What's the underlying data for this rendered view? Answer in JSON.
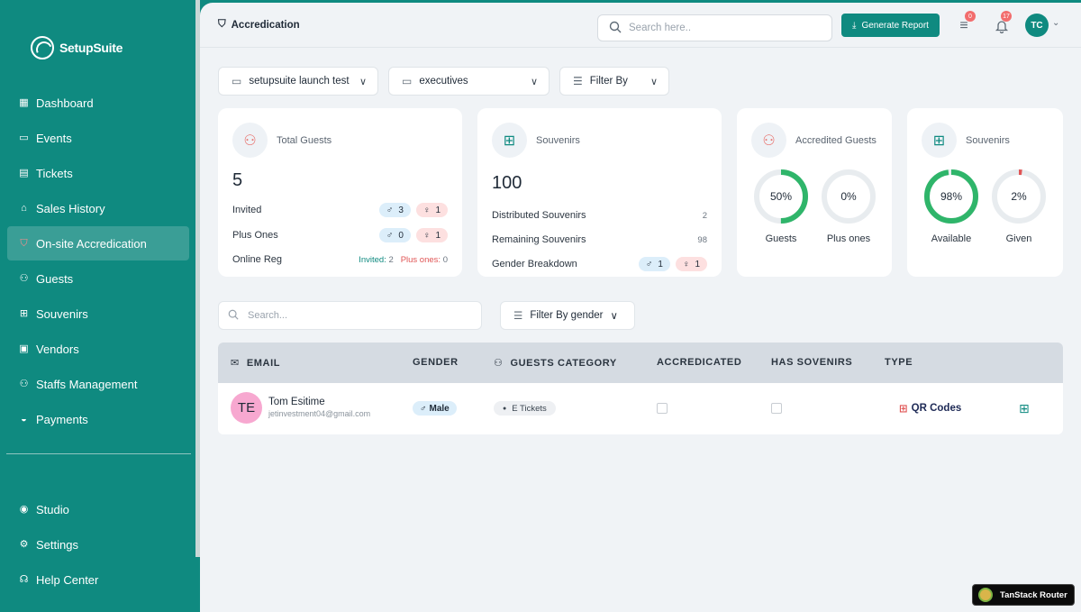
{
  "app": {
    "name": "SetupSuite"
  },
  "sidebar": {
    "items": [
      {
        "label": "Dashboard",
        "icon": "grid-icon"
      },
      {
        "label": "Events",
        "icon": "calendar-icon"
      },
      {
        "label": "Tickets",
        "icon": "ticket-icon"
      },
      {
        "label": "Sales History",
        "icon": "sales-icon"
      },
      {
        "label": "On-site Accredication",
        "icon": "shield-check-icon",
        "active": true
      },
      {
        "label": "Guests",
        "icon": "users-icon"
      },
      {
        "label": "Souvenirs",
        "icon": "gift-icon"
      },
      {
        "label": "Vendors",
        "icon": "store-icon"
      },
      {
        "label": "Staffs Management",
        "icon": "staff-icon"
      },
      {
        "label": "Payments",
        "icon": "payment-icon"
      }
    ],
    "bottom_items": [
      {
        "label": "Studio",
        "icon": "studio-icon"
      },
      {
        "label": "Settings",
        "icon": "gear-icon"
      },
      {
        "label": "Help Center",
        "icon": "headset-icon"
      }
    ]
  },
  "topbar": {
    "title": "Accredication",
    "search_placeholder": "Search here..",
    "generate_label": "Generate Report",
    "cart_badge": "0",
    "notif_badge": "17",
    "avatar_initials": "TC"
  },
  "filters": {
    "event": "setupsuite launch test",
    "category": "executives",
    "filter_by": "Filter By"
  },
  "cards": {
    "total_guests": {
      "title": "Total Guests",
      "value": "5",
      "invited_label": "Invited",
      "invited_male": "3",
      "invited_female": "1",
      "plus_label": "Plus Ones",
      "plus_male": "0",
      "plus_female": "1",
      "online_label": "Online Reg",
      "online_invited_label": "Invited:",
      "online_invited_value": "2",
      "online_plus_label": "Plus ones:",
      "online_plus_value": "0"
    },
    "souvenirs": {
      "title": "Souvenirs",
      "value": "100",
      "distributed_label": "Distributed Souvenirs",
      "distributed_value": "2",
      "remaining_label": "Remaining Souvenirs",
      "remaining_value": "98",
      "gender_label": "Gender Breakdown",
      "gender_male": "1",
      "gender_female": "1"
    },
    "accredited": {
      "title": "Accredited Guests",
      "ring1_label": "50%",
      "ring1_value": 0.5,
      "ring1_caption": "Guests",
      "ring2_label": "0%",
      "ring2_value": 0,
      "ring2_caption": "Plus ones"
    },
    "souvenirs2": {
      "title": "Souvenirs",
      "ring1_label": "98%",
      "ring1_value": 0.98,
      "ring1_caption": "Available",
      "ring2_label": "2%",
      "ring2_value": 0.02,
      "ring2_caption": "Given"
    }
  },
  "list": {
    "search_placeholder": "Search...",
    "gender_filter": "Filter By gender",
    "columns": [
      "EMAIL",
      "GENDER",
      "GUESTS CATEGORY",
      "ACCREDICATED",
      "HAS SOVENIRS",
      "TYPE"
    ],
    "rows": [
      {
        "initials": "TE",
        "name": "Tom Esitime",
        "email": "jetinvestment04@gmail.com",
        "gender": "Male",
        "category": "E Tickets",
        "type": "QR Codes"
      }
    ]
  },
  "badge": {
    "label": "TanStack Router"
  },
  "colors": {
    "primary": "#0f8a80",
    "ring_green": "#2fb56a",
    "ring_red": "#e05555",
    "ring_track": "#e8ecef"
  }
}
